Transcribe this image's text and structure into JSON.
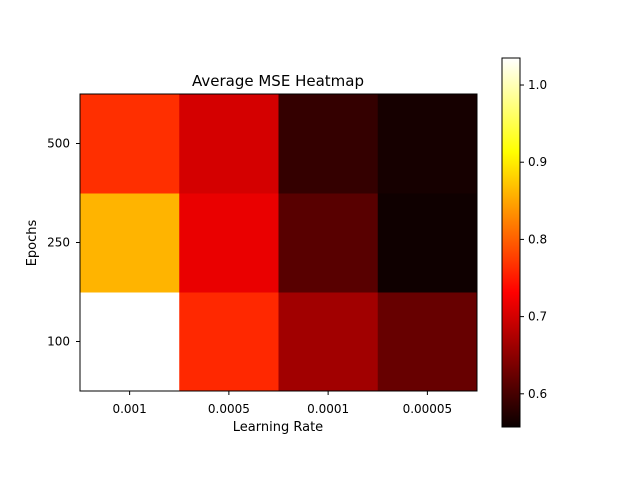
{
  "chart_data": {
    "type": "heatmap",
    "title": "Average MSE Heatmap",
    "xlabel": "Learning Rate",
    "ylabel": "Epochs",
    "x_categories": [
      "0.001",
      "0.0005",
      "0.0001",
      "0.00005"
    ],
    "y_categories": [
      "100",
      "250",
      "500"
    ],
    "values": [
      [
        1.035,
        0.76,
        0.66,
        0.62
      ],
      [
        0.86,
        0.71,
        0.61,
        0.56
      ],
      [
        0.765,
        0.695,
        0.585,
        0.565
      ]
    ],
    "colormap": "hot",
    "colorbar": {
      "range": [
        0.557,
        1.035
      ],
      "ticks": [
        0.6,
        0.7,
        0.8,
        0.9,
        1.0
      ],
      "tick_labels": [
        "0.6",
        "0.7",
        "0.8",
        "0.9",
        "1.0"
      ]
    },
    "grid": false
  }
}
